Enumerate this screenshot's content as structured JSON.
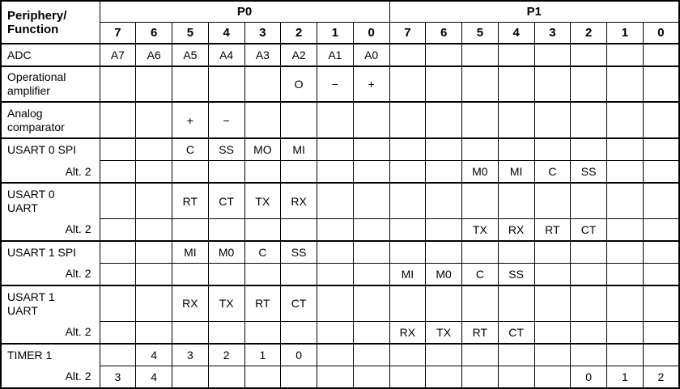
{
  "table": {
    "corner_label_line1": "Periphery/",
    "corner_label_line2": "Function",
    "port_headers": [
      "P0",
      "P1"
    ],
    "bit_headers": [
      "7",
      "6",
      "5",
      "4",
      "3",
      "2",
      "1",
      "0",
      "7",
      "6",
      "5",
      "4",
      "3",
      "2",
      "1",
      "0"
    ],
    "alt_label": "Alt. 2",
    "rows": [
      {
        "label_lines": [
          "ADC"
        ],
        "cells": [
          "A7",
          "A6",
          "A5",
          "A4",
          "A3",
          "A2",
          "A1",
          "A0",
          "",
          "",
          "",
          "",
          "",
          "",
          "",
          ""
        ]
      },
      {
        "label_lines": [
          "Operational",
          "amplifier"
        ],
        "cells": [
          "",
          "",
          "",
          "",
          "",
          "O",
          "−",
          "+",
          "",
          "",
          "",
          "",
          "",
          "",
          "",
          ""
        ]
      },
      {
        "label_lines": [
          "Analog",
          "comparator"
        ],
        "cells": [
          "",
          "",
          "+",
          "−",
          "",
          "",
          "",
          "",
          "",
          "",
          "",
          "",
          "",
          "",
          "",
          ""
        ]
      },
      {
        "label_lines": [
          "USART 0 SPI"
        ],
        "cells": [
          "",
          "",
          "C",
          "SS",
          "MO",
          "MI",
          "",
          "",
          "",
          "",
          "",
          "",
          "",
          "",
          "",
          ""
        ],
        "alt_cells": [
          "",
          "",
          "",
          "",
          "",
          "",
          "",
          "",
          "",
          "",
          "M0",
          "MI",
          "C",
          "SS",
          "",
          ""
        ]
      },
      {
        "label_lines": [
          "USART 0",
          "UART"
        ],
        "cells": [
          "",
          "",
          "RT",
          "CT",
          "TX",
          "RX",
          "",
          "",
          "",
          "",
          "",
          "",
          "",
          "",
          "",
          ""
        ],
        "alt_cells": [
          "",
          "",
          "",
          "",
          "",
          "",
          "",
          "",
          "",
          "",
          "TX",
          "RX",
          "RT",
          "CT",
          "",
          ""
        ]
      },
      {
        "label_lines": [
          "USART 1 SPI"
        ],
        "cells": [
          "",
          "",
          "MI",
          "M0",
          "C",
          "SS",
          "",
          "",
          "",
          "",
          "",
          "",
          "",
          "",
          "",
          ""
        ],
        "alt_cells": [
          "",
          "",
          "",
          "",
          "",
          "",
          "",
          "",
          "MI",
          "M0",
          "C",
          "SS",
          "",
          "",
          "",
          ""
        ]
      },
      {
        "label_lines": [
          "USART 1",
          "UART"
        ],
        "cells": [
          "",
          "",
          "RX",
          "TX",
          "RT",
          "CT",
          "",
          "",
          "",
          "",
          "",
          "",
          "",
          "",
          "",
          ""
        ],
        "alt_cells": [
          "",
          "",
          "",
          "",
          "",
          "",
          "",
          "",
          "RX",
          "TX",
          "RT",
          "CT",
          "",
          "",
          "",
          ""
        ]
      },
      {
        "label_lines": [
          "TIMER 1"
        ],
        "cells": [
          "",
          "4",
          "3",
          "2",
          "1",
          "0",
          "",
          "",
          "",
          "",
          "",
          "",
          "",
          "",
          "",
          ""
        ],
        "alt_cells": [
          "3",
          "4",
          "",
          "",
          "",
          "",
          "",
          "",
          "",
          "",
          "",
          "",
          "",
          "0",
          "1",
          "2"
        ]
      }
    ]
  }
}
